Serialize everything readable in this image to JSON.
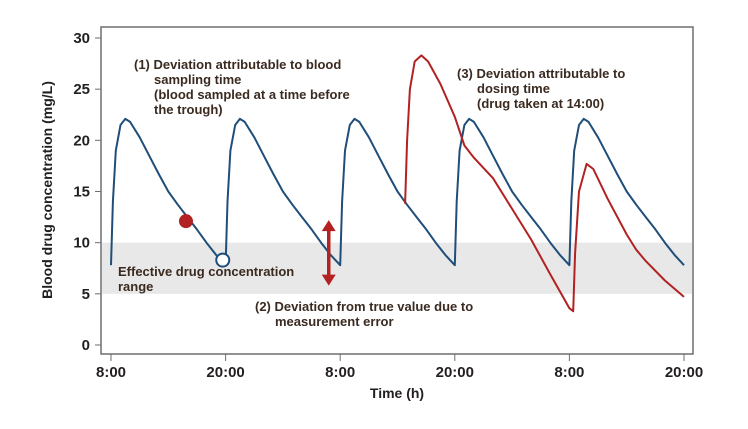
{
  "chart_data": {
    "type": "line",
    "xlabel": "Time (h)",
    "ylabel": "Blood drug concentration (mg/L)",
    "ylim": [
      0,
      30
    ],
    "yticks": [
      0,
      5,
      10,
      15,
      20,
      25,
      30
    ],
    "xlim_hours": [
      0,
      60
    ],
    "xticks": [
      {
        "hour": 0,
        "label": "8:00"
      },
      {
        "hour": 12,
        "label": "20:00"
      },
      {
        "hour": 24,
        "label": "8:00"
      },
      {
        "hour": 36,
        "label": "20:00"
      },
      {
        "hour": 48,
        "label": "8:00"
      },
      {
        "hour": 60,
        "label": "20:00"
      }
    ],
    "band": {
      "from": 5,
      "to": 10,
      "label_lines": [
        "Effective drug concentration",
        "range"
      ],
      "color": "#e8e8e8"
    },
    "series": [
      {
        "color": "#1f4e79",
        "dose_hours": [
          0,
          12,
          24,
          36,
          48
        ],
        "cycle_profile": [
          [
            0,
            7.8
          ],
          [
            0.2,
            14
          ],
          [
            0.5,
            19
          ],
          [
            1,
            21.5
          ],
          [
            1.5,
            22.1
          ],
          [
            2,
            21.8
          ],
          [
            3,
            20.3
          ],
          [
            4,
            18.5
          ],
          [
            5,
            16.7
          ],
          [
            6,
            15
          ],
          [
            7,
            13.7
          ],
          [
            8,
            12.5
          ],
          [
            9,
            11.3
          ],
          [
            10,
            10
          ],
          [
            11,
            8.8
          ],
          [
            12,
            7.8
          ]
        ]
      },
      {
        "color": "#b22222",
        "points": [
          [
            30.8,
            13.8
          ],
          [
            31.0,
            20
          ],
          [
            31.3,
            25
          ],
          [
            31.8,
            27.7
          ],
          [
            32.5,
            28.3
          ],
          [
            33.2,
            27.7
          ],
          [
            34.5,
            25.5
          ],
          [
            36,
            22.3
          ],
          [
            37,
            19.5
          ],
          [
            38,
            18.3
          ],
          [
            40,
            16.3
          ],
          [
            42,
            13.3
          ],
          [
            44,
            10.3
          ],
          [
            46,
            6.9
          ],
          [
            48,
            3.6
          ],
          [
            48.4,
            3.3
          ],
          [
            48.6,
            9
          ],
          [
            49,
            15
          ],
          [
            49.8,
            17.7
          ],
          [
            50.5,
            17.2
          ],
          [
            52,
            14.3
          ],
          [
            54,
            10.8
          ],
          [
            55,
            9.3
          ],
          [
            56,
            8.2
          ],
          [
            58,
            6.3
          ],
          [
            60,
            4.7
          ]
        ]
      }
    ],
    "markers": [
      {
        "type": "filled",
        "color": "#b22222",
        "x": 7.85,
        "y": 12.1
      },
      {
        "type": "open",
        "color": "#1f4e79",
        "x": 11.7,
        "y": 8.3
      }
    ],
    "arrow": {
      "x": 22.8,
      "from": 12.2,
      "to": 5.8,
      "color": "#b22222"
    },
    "annotations": [
      {
        "lines": [
          "(1) Deviation attributable to blood",
          "sampling time",
          "(blood sampled at a time before",
          "the trough)"
        ]
      },
      {
        "lines": [
          "(2) Deviation from true value due to",
          "measurement error"
        ]
      },
      {
        "lines": [
          "(3) Deviation attributable to",
          "dosing time",
          "(drug taken at 14:00)"
        ]
      }
    ]
  }
}
